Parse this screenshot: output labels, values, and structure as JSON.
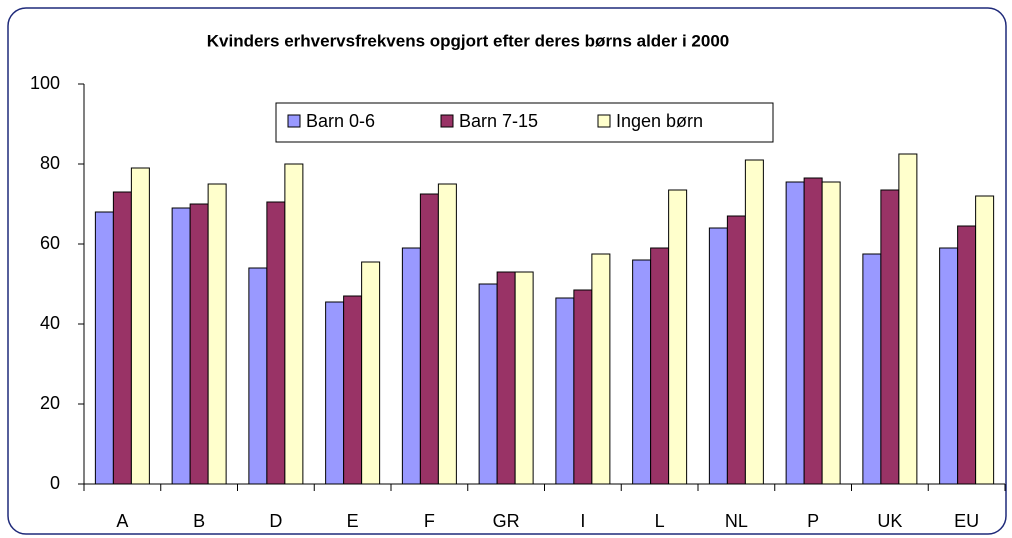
{
  "chart_data": {
    "type": "bar",
    "title": "Kvinders erhvervsfrekvens opgjort efter deres børns alder i 2000",
    "categories": [
      "A",
      "B",
      "D",
      "E",
      "F",
      "GR",
      "I",
      "L",
      "NL",
      "P",
      "UK",
      "EU"
    ],
    "series": [
      {
        "name": "Barn 0-6",
        "color": "#9999ff",
        "values": [
          68,
          69,
          54,
          45.5,
          59,
          50,
          46.5,
          56,
          64,
          75.5,
          57.5,
          59
        ]
      },
      {
        "name": "Barn 7-15",
        "color": "#993366",
        "values": [
          73,
          70,
          70.5,
          47,
          72.5,
          53,
          48.5,
          59,
          67,
          76.5,
          73.5,
          64.5
        ]
      },
      {
        "name": "Ingen børn",
        "color": "#ffffcc",
        "values": [
          79,
          75,
          80,
          55.5,
          75,
          53,
          57.5,
          73.5,
          81,
          75.5,
          82.5,
          72
        ]
      }
    ],
    "ylim": [
      0,
      100
    ],
    "yticks": [
      0,
      20,
      40,
      60,
      80,
      100
    ],
    "grid": false,
    "legend": "top"
  }
}
